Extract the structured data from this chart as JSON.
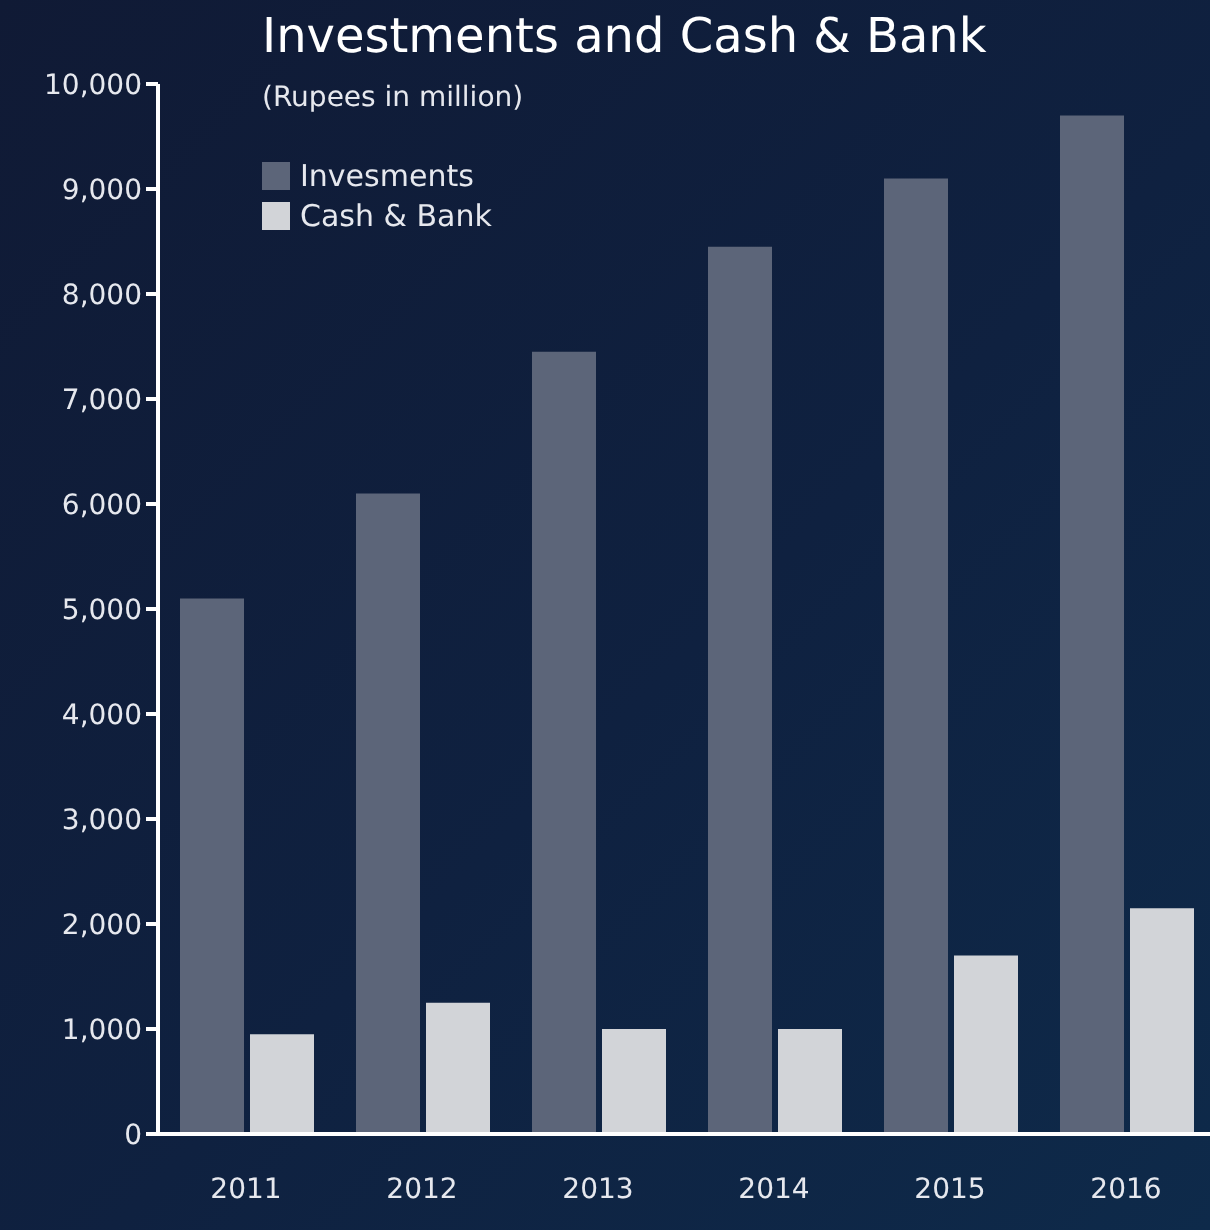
{
  "chart_data": {
    "type": "bar",
    "title": "Investments and Cash & Bank",
    "subtitle": "(Rupees in million)",
    "categories": [
      "2011",
      "2012",
      "2013",
      "2014",
      "2015",
      "2016"
    ],
    "series": [
      {
        "name": "Invesments",
        "color": "#5c6579",
        "values": [
          5100,
          6100,
          7450,
          8450,
          9100,
          9700
        ]
      },
      {
        "name": "Cash & Bank",
        "color": "#d2d4d8",
        "values": [
          950,
          1250,
          1000,
          1000,
          1700,
          2150
        ]
      }
    ],
    "ylim": [
      0,
      10000
    ],
    "yticks": [
      0,
      {
        "value": 1000,
        "label": "1,000"
      },
      {
        "value": 2000,
        "label": "2,000"
      },
      {
        "value": 3000,
        "label": "3,000"
      },
      {
        "value": 4000,
        "label": "4,000"
      },
      {
        "value": 5000,
        "label": "5,000"
      },
      {
        "value": 6000,
        "label": "6,000"
      },
      {
        "value": 7000,
        "label": "7,000"
      },
      {
        "value": 8000,
        "label": "8,000"
      },
      {
        "value": 9000,
        "label": "9,000"
      },
      {
        "value": 10000,
        "label": "10,000"
      }
    ],
    "legend": "top left"
  }
}
